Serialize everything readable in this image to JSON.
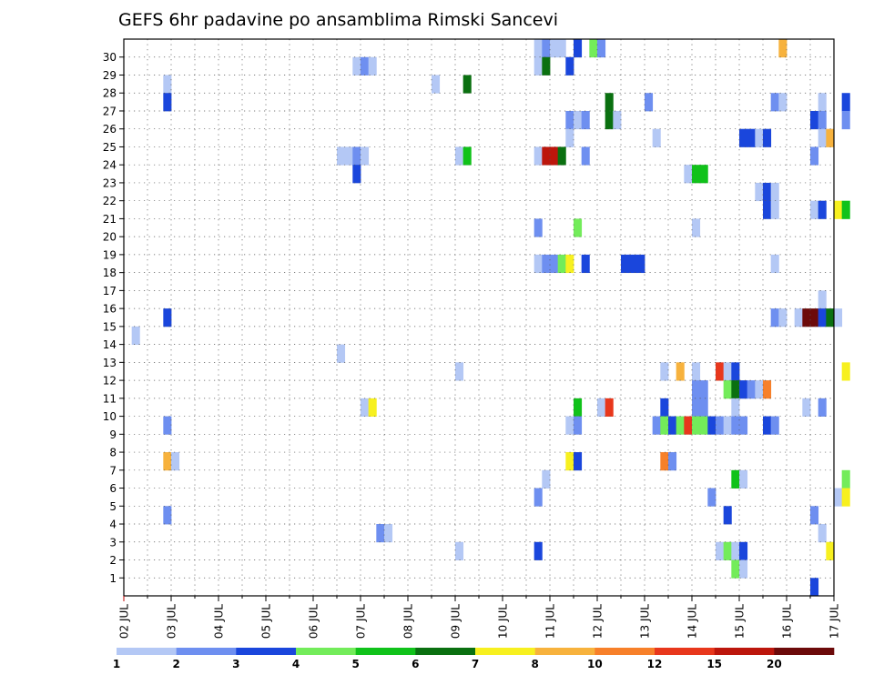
{
  "chart_data": {
    "type": "heatmap",
    "title": "GEFS 6hr padavine po ansamblima Rimski Sancevi",
    "x_categories": [
      "02 JUL",
      "03 JUL",
      "04 JUL",
      "05 JUL",
      "06 JUL",
      "07 JUL",
      "08 JUL",
      "09 JUL",
      "10 JUL",
      "11 JUL",
      "12 JUL",
      "13 JUL",
      "14 JUL",
      "15 JUL",
      "16 JUL",
      "17 JUL"
    ],
    "y_categories": [
      "1",
      "2",
      "3",
      "4",
      "5",
      "6",
      "7",
      "8",
      "9",
      "10",
      "11",
      "12",
      "13",
      "14",
      "15",
      "16",
      "17",
      "18",
      "19",
      "20",
      "21",
      "22",
      "23",
      "24",
      "25",
      "26",
      "27",
      "28",
      "29",
      "30"
    ],
    "steps_per_day": 4,
    "grid": true,
    "legend": {
      "placement": "bottom",
      "labels": [
        "1",
        "2",
        "3",
        "4",
        "5",
        "6",
        "7",
        "8",
        "10",
        "12",
        "15",
        "20"
      ],
      "colors": [
        "#b4c8f5",
        "#6e8ff0",
        "#1a46dc",
        "#73ec5a",
        "#10c21a",
        "#0a7010",
        "#f7f01f",
        "#f7b23d",
        "#f7802a",
        "#e8371c",
        "#bc160c",
        "#6c0a0a"
      ]
    },
    "cells": [
      {
        "step": 52,
        "member": 30,
        "level": 1
      },
      {
        "step": 53,
        "member": 30,
        "level": 2
      },
      {
        "step": 54,
        "member": 30,
        "level": 1
      },
      {
        "step": 55,
        "member": 30,
        "level": 1
      },
      {
        "step": 57,
        "member": 30,
        "level": 3
      },
      {
        "step": 59,
        "member": 30,
        "level": 4
      },
      {
        "step": 60,
        "member": 30,
        "level": 2
      },
      {
        "step": 83,
        "member": 30,
        "level": 8
      },
      {
        "step": 29,
        "member": 29,
        "level": 1
      },
      {
        "step": 30,
        "member": 29,
        "level": 2
      },
      {
        "step": 31,
        "member": 29,
        "level": 1
      },
      {
        "step": 52,
        "member": 29,
        "level": 1
      },
      {
        "step": 53,
        "member": 29,
        "level": 6
      },
      {
        "step": 56,
        "member": 29,
        "level": 3
      },
      {
        "step": 5,
        "member": 28,
        "level": 1
      },
      {
        "step": 39,
        "member": 28,
        "level": 1
      },
      {
        "step": 43,
        "member": 28,
        "level": 6
      },
      {
        "step": 5,
        "member": 27,
        "level": 3
      },
      {
        "step": 61,
        "member": 27,
        "level": 6
      },
      {
        "step": 66,
        "member": 27,
        "level": 2
      },
      {
        "step": 82,
        "member": 27,
        "level": 2
      },
      {
        "step": 83,
        "member": 27,
        "level": 1
      },
      {
        "step": 88,
        "member": 27,
        "level": 1
      },
      {
        "step": 91,
        "member": 27,
        "level": 3
      },
      {
        "step": 56,
        "member": 26,
        "level": 2
      },
      {
        "step": 57,
        "member": 26,
        "level": 1
      },
      {
        "step": 58,
        "member": 26,
        "level": 2
      },
      {
        "step": 61,
        "member": 26,
        "level": 6
      },
      {
        "step": 62,
        "member": 26,
        "level": 1
      },
      {
        "step": 87,
        "member": 26,
        "level": 3
      },
      {
        "step": 88,
        "member": 26,
        "level": 2
      },
      {
        "step": 91,
        "member": 26,
        "level": 2
      },
      {
        "step": 56,
        "member": 25,
        "level": 1
      },
      {
        "step": 67,
        "member": 25,
        "level": 1
      },
      {
        "step": 78,
        "member": 25,
        "level": 3
      },
      {
        "step": 79,
        "member": 25,
        "level": 3
      },
      {
        "step": 80,
        "member": 25,
        "level": 1
      },
      {
        "step": 81,
        "member": 25,
        "level": 3
      },
      {
        "step": 88,
        "member": 25,
        "level": 1
      },
      {
        "step": 89,
        "member": 25,
        "level": 8
      },
      {
        "step": 27,
        "member": 24,
        "level": 1
      },
      {
        "step": 28,
        "member": 24,
        "level": 1
      },
      {
        "step": 29,
        "member": 24,
        "level": 2
      },
      {
        "step": 30,
        "member": 24,
        "level": 1
      },
      {
        "step": 42,
        "member": 24,
        "level": 1
      },
      {
        "step": 43,
        "member": 24,
        "level": 5
      },
      {
        "step": 52,
        "member": 24,
        "level": 1
      },
      {
        "step": 53,
        "member": 24,
        "level": 11
      },
      {
        "step": 54,
        "member": 24,
        "level": 11
      },
      {
        "step": 55,
        "member": 24,
        "level": 6
      },
      {
        "step": 58,
        "member": 24,
        "level": 2
      },
      {
        "step": 87,
        "member": 24,
        "level": 2
      },
      {
        "step": 29,
        "member": 23,
        "level": 3
      },
      {
        "step": 71,
        "member": 23,
        "level": 1
      },
      {
        "step": 72,
        "member": 23,
        "level": 5
      },
      {
        "step": 73,
        "member": 23,
        "level": 5
      },
      {
        "step": 80,
        "member": 22,
        "level": 1
      },
      {
        "step": 81,
        "member": 22,
        "level": 3
      },
      {
        "step": 82,
        "member": 22,
        "level": 1
      },
      {
        "step": 81,
        "member": 21,
        "level": 3
      },
      {
        "step": 82,
        "member": 21,
        "level": 1
      },
      {
        "step": 87,
        "member": 21,
        "level": 1
      },
      {
        "step": 88,
        "member": 21,
        "level": 3
      },
      {
        "step": 90,
        "member": 21,
        "level": 7
      },
      {
        "step": 91,
        "member": 21,
        "level": 5
      },
      {
        "step": 52,
        "member": 20,
        "level": 2
      },
      {
        "step": 57,
        "member": 20,
        "level": 4
      },
      {
        "step": 72,
        "member": 20,
        "level": 1
      },
      {
        "step": 52,
        "member": 18,
        "level": 1
      },
      {
        "step": 53,
        "member": 18,
        "level": 2
      },
      {
        "step": 54,
        "member": 18,
        "level": 2
      },
      {
        "step": 55,
        "member": 18,
        "level": 4
      },
      {
        "step": 56,
        "member": 18,
        "level": 7
      },
      {
        "step": 58,
        "member": 18,
        "level": 3
      },
      {
        "step": 63,
        "member": 18,
        "level": 3
      },
      {
        "step": 64,
        "member": 18,
        "level": 3
      },
      {
        "step": 65,
        "member": 18,
        "level": 3
      },
      {
        "step": 82,
        "member": 18,
        "level": 1
      },
      {
        "step": 88,
        "member": 16,
        "level": 1
      },
      {
        "step": 5,
        "member": 15,
        "level": 3
      },
      {
        "step": 82,
        "member": 15,
        "level": 2
      },
      {
        "step": 83,
        "member": 15,
        "level": 1
      },
      {
        "step": 85,
        "member": 15,
        "level": 1
      },
      {
        "step": 86,
        "member": 15,
        "level": 12
      },
      {
        "step": 87,
        "member": 15,
        "level": 12
      },
      {
        "step": 88,
        "member": 15,
        "level": 3
      },
      {
        "step": 89,
        "member": 15,
        "level": 6
      },
      {
        "step": 90,
        "member": 15,
        "level": 1
      },
      {
        "step": 1,
        "member": 14,
        "level": 1
      },
      {
        "step": 27,
        "member": 13,
        "level": 1
      },
      {
        "step": 42,
        "member": 12,
        "level": 1
      },
      {
        "step": 68,
        "member": 12,
        "level": 1
      },
      {
        "step": 70,
        "member": 12,
        "level": 8
      },
      {
        "step": 72,
        "member": 12,
        "level": 1
      },
      {
        "step": 75,
        "member": 12,
        "level": 10
      },
      {
        "step": 76,
        "member": 12,
        "level": 1
      },
      {
        "step": 77,
        "member": 12,
        "level": 3
      },
      {
        "step": 91,
        "member": 12,
        "level": 7
      },
      {
        "step": 72,
        "member": 11,
        "level": 2
      },
      {
        "step": 73,
        "member": 11,
        "level": 2
      },
      {
        "step": 76,
        "member": 11,
        "level": 4
      },
      {
        "step": 77,
        "member": 11,
        "level": 6
      },
      {
        "step": 78,
        "member": 11,
        "level": 3
      },
      {
        "step": 79,
        "member": 11,
        "level": 2
      },
      {
        "step": 80,
        "member": 11,
        "level": 1
      },
      {
        "step": 81,
        "member": 11,
        "level": 9
      },
      {
        "step": 30,
        "member": 10,
        "level": 1
      },
      {
        "step": 31,
        "member": 10,
        "level": 7
      },
      {
        "step": 57,
        "member": 10,
        "level": 5
      },
      {
        "step": 60,
        "member": 10,
        "level": 1
      },
      {
        "step": 61,
        "member": 10,
        "level": 10
      },
      {
        "step": 68,
        "member": 10,
        "level": 3
      },
      {
        "step": 72,
        "member": 10,
        "level": 2
      },
      {
        "step": 73,
        "member": 10,
        "level": 2
      },
      {
        "step": 77,
        "member": 10,
        "level": 1
      },
      {
        "step": 86,
        "member": 10,
        "level": 1
      },
      {
        "step": 88,
        "member": 10,
        "level": 2
      },
      {
        "step": 5,
        "member": 9,
        "level": 2
      },
      {
        "step": 56,
        "member": 9,
        "level": 1
      },
      {
        "step": 57,
        "member": 9,
        "level": 2
      },
      {
        "step": 67,
        "member": 9,
        "level": 2
      },
      {
        "step": 68,
        "member": 9,
        "level": 4
      },
      {
        "step": 69,
        "member": 9,
        "level": 3
      },
      {
        "step": 70,
        "member": 9,
        "level": 4
      },
      {
        "step": 71,
        "member": 9,
        "level": 10
      },
      {
        "step": 72,
        "member": 9,
        "level": 4
      },
      {
        "step": 73,
        "member": 9,
        "level": 4
      },
      {
        "step": 74,
        "member": 9,
        "level": 3
      },
      {
        "step": 75,
        "member": 9,
        "level": 2
      },
      {
        "step": 76,
        "member": 9,
        "level": 1
      },
      {
        "step": 77,
        "member": 9,
        "level": 2
      },
      {
        "step": 78,
        "member": 9,
        "level": 2
      },
      {
        "step": 81,
        "member": 9,
        "level": 3
      },
      {
        "step": 82,
        "member": 9,
        "level": 2
      },
      {
        "step": 5,
        "member": 7,
        "level": 8
      },
      {
        "step": 6,
        "member": 7,
        "level": 1
      },
      {
        "step": 56,
        "member": 7,
        "level": 7
      },
      {
        "step": 57,
        "member": 7,
        "level": 3
      },
      {
        "step": 68,
        "member": 7,
        "level": 9
      },
      {
        "step": 69,
        "member": 7,
        "level": 2
      },
      {
        "step": 53,
        "member": 6,
        "level": 1
      },
      {
        "step": 77,
        "member": 6,
        "level": 5
      },
      {
        "step": 78,
        "member": 6,
        "level": 1
      },
      {
        "step": 91,
        "member": 6,
        "level": 4
      },
      {
        "step": 52,
        "member": 5,
        "level": 2
      },
      {
        "step": 74,
        "member": 5,
        "level": 2
      },
      {
        "step": 90,
        "member": 5,
        "level": 1
      },
      {
        "step": 91,
        "member": 5,
        "level": 7
      },
      {
        "step": 5,
        "member": 4,
        "level": 2
      },
      {
        "step": 76,
        "member": 4,
        "level": 3
      },
      {
        "step": 87,
        "member": 4,
        "level": 2
      },
      {
        "step": 32,
        "member": 3,
        "level": 2
      },
      {
        "step": 33,
        "member": 3,
        "level": 1
      },
      {
        "step": 88,
        "member": 3,
        "level": 1
      },
      {
        "step": 42,
        "member": 2,
        "level": 1
      },
      {
        "step": 52,
        "member": 2,
        "level": 3
      },
      {
        "step": 75,
        "member": 2,
        "level": 1
      },
      {
        "step": 76,
        "member": 2,
        "level": 4
      },
      {
        "step": 77,
        "member": 2,
        "level": 1
      },
      {
        "step": 78,
        "member": 2,
        "level": 3
      },
      {
        "step": 89,
        "member": 2,
        "level": 7
      },
      {
        "step": 77,
        "member": 1,
        "level": 4
      },
      {
        "step": 78,
        "member": 1,
        "level": 1
      },
      {
        "step": 87,
        "member": 0,
        "level": 3
      }
    ]
  }
}
